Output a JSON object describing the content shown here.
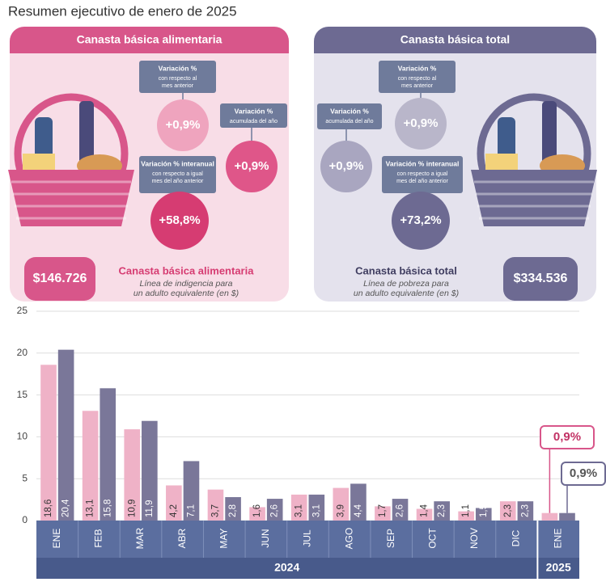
{
  "header": {
    "title": "Resumen ejecutivo de enero de 2025"
  },
  "panels": [
    {
      "title": "Canasta básica alimentaria",
      "color": "#d8568a",
      "bg": "#f8dde7",
      "bubbles": [
        {
          "title": "Variación %",
          "subtitle": [
            "con respecto al",
            "mes anterior"
          ],
          "value": "+0,9%",
          "color": "#efa4be"
        },
        {
          "title": "Variación %",
          "subtitle": [
            "acumulada del año"
          ],
          "value": "+0,9%",
          "color": "#df5689"
        },
        {
          "title": "Variación % interanual",
          "subtitle": [
            "con respecto a igual",
            "mes del año anterior"
          ],
          "value": "+58,8%",
          "color": "#d63c72"
        }
      ],
      "amount": "$146.726",
      "name": "Canasta básica alimentaria",
      "description": [
        "Línea de indigencia para",
        "un adulto equivalente (en $)"
      ]
    },
    {
      "title": "Canasta básica total",
      "color": "#6d6a92",
      "bg": "#e4e2ed",
      "bubbles": [
        {
          "title": "Variación %",
          "subtitle": [
            "con respecto al",
            "mes anterior"
          ],
          "value": "+0,9%",
          "color": "#b9b6ca"
        },
        {
          "title": "Variación %",
          "subtitle": [
            "acumulada del año"
          ],
          "value": "+0,9%",
          "color": "#a9a6c0"
        },
        {
          "title": "Variación % interanual",
          "subtitle": [
            "con respecto a igual",
            "mes del año anterior"
          ],
          "value": "+73,2%",
          "color": "#6d6a92"
        }
      ],
      "amount": "$334.536",
      "name": "Canasta básica total",
      "description": [
        "Línea de pobreza para",
        "un adulto equivalente (en $)"
      ]
    }
  ],
  "chart_data": {
    "type": "bar",
    "categories": [
      "ENE",
      "FEB",
      "MAR",
      "ABR",
      "MAY",
      "JUN",
      "JUL",
      "AGO",
      "SEP",
      "OCT",
      "NOV",
      "DIC",
      "ENE"
    ],
    "years": [
      "2024",
      "2025"
    ],
    "series": [
      {
        "color": "#efb2c7",
        "values": [
          18.6,
          13.1,
          10.9,
          4.2,
          3.7,
          1.6,
          3.1,
          3.9,
          1.7,
          1.4,
          1.1,
          2.3,
          0.9
        ],
        "value_labels": [
          "18,6",
          "13,1",
          "10,9",
          "4,2",
          "3,7",
          "1,6",
          "3,1",
          "3,9",
          "1,7",
          "1,4",
          "1,1",
          "2,3",
          "0,9%"
        ]
      },
      {
        "color": "#7a7799",
        "values": [
          20.4,
          15.8,
          11.9,
          7.1,
          2.8,
          2.6,
          3.1,
          4.4,
          2.6,
          2.3,
          1.5,
          2.3,
          0.9
        ],
        "value_labels": [
          "20,4",
          "15,8",
          "11,9",
          "7,1",
          "2,8",
          "2,6",
          "3,1",
          "4,4",
          "2,6",
          "2,3",
          "1,5",
          "2,3",
          "0,9%"
        ]
      }
    ],
    "ylim": [
      0,
      25
    ],
    "yticks": [
      0,
      5,
      10,
      15,
      20,
      25
    ],
    "grid": true
  }
}
